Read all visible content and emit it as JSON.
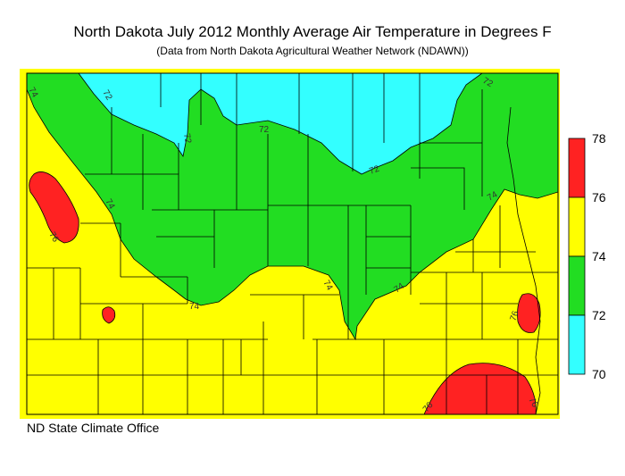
{
  "title": "North Dakota July 2012 Monthly Average Air Temperature in Degrees F",
  "subtitle": "(Data from North Dakota Agricultural Weather Network (NDAWN))",
  "credit": "ND State Climate Office",
  "colors": {
    "band_70_72": "#33ffff",
    "band_72_74": "#22dd22",
    "band_74_76": "#ffff00",
    "band_76_78": "#ff2222",
    "county_lines": "#000000"
  },
  "legend": {
    "ticks": [
      "78",
      "76",
      "74",
      "72",
      "70"
    ],
    "bands": [
      {
        "from": 76,
        "to": 78,
        "color": "#ff2222"
      },
      {
        "from": 74,
        "to": 76,
        "color": "#ffff00"
      },
      {
        "from": 72,
        "to": 74,
        "color": "#22dd22"
      },
      {
        "from": 70,
        "to": 72,
        "color": "#33ffff"
      }
    ]
  },
  "isoline_labels": {
    "l72_nw": "72",
    "l72_a": "72",
    "l72_b": "72",
    "l72_c": "72",
    "l72_ne": "72",
    "l74_nw": "74",
    "l74_w": "74",
    "l74_c": "74",
    "l74_s": "74",
    "l74_e": "74",
    "l74_se": "74",
    "l76_w": "76",
    "l76_e": "76",
    "l76_s1": "76",
    "l76_s2": "76"
  }
}
